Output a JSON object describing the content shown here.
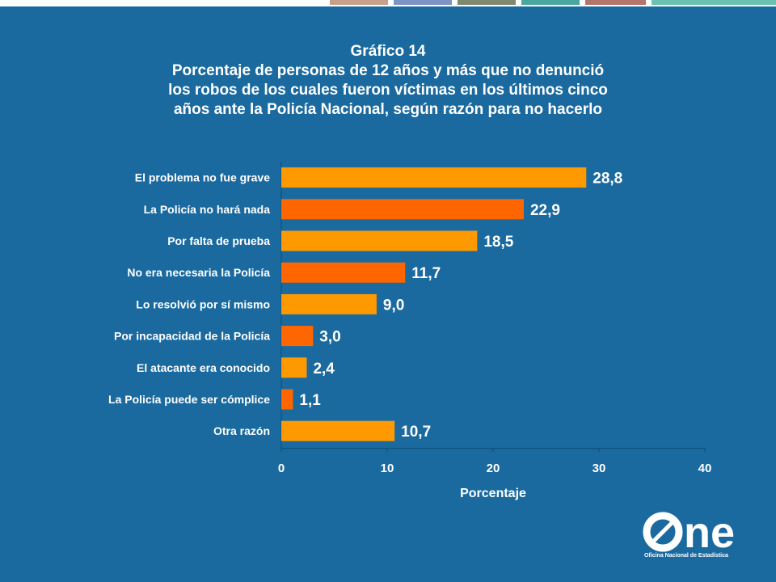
{
  "title": {
    "line1": "Gráfico 14",
    "line2": "Porcentaje de personas de 12 años y más que no denunció",
    "line3": "los robos de los cuales fueron víctimas en los últimos cinco",
    "line4": "años ante la Policía Nacional, según razón para no hacerlo"
  },
  "colors": {
    "background": "#1a6aa0",
    "bar_light": "#ff9900",
    "bar_dark": "#ff6600",
    "top_stripes": [
      "#c8a08a",
      "#7d95c4",
      "#7e8a6e",
      "#4aa7a0",
      "#b5746c",
      "#6cc0b0"
    ]
  },
  "chart_data": {
    "type": "bar",
    "orientation": "horizontal",
    "categories": [
      "El problema no fue grave",
      "La Policía no hará nada",
      "Por falta de prueba",
      "No era necesaria la Policía",
      "Lo resolvió por sí mismo",
      "Por incapacidad de la Policía",
      "El atacante era conocido",
      "La Policía puede ser cómplice",
      "Otra razón"
    ],
    "values": [
      28.8,
      22.9,
      18.5,
      11.7,
      9.0,
      3.0,
      2.4,
      1.1,
      10.7
    ],
    "value_labels": [
      "28,8",
      "22,9",
      "18,5",
      "11,7",
      "9,0",
      "3,0",
      "2,4",
      "1,1",
      "10,7"
    ],
    "bar_colors": [
      "#ff9900",
      "#ff6600",
      "#ff9900",
      "#ff6600",
      "#ff9900",
      "#ff6600",
      "#ff9900",
      "#ff6600",
      "#ff9900"
    ],
    "xlim": [
      0,
      40
    ],
    "xticks": [
      "0",
      "10",
      "20",
      "30",
      "40"
    ],
    "xlabel": "Porcentaje",
    "ylabel": "",
    "grid": false,
    "legend": "none"
  },
  "logo": {
    "text": "ne",
    "subtitle": "Oficina Nacional de Estadística"
  }
}
